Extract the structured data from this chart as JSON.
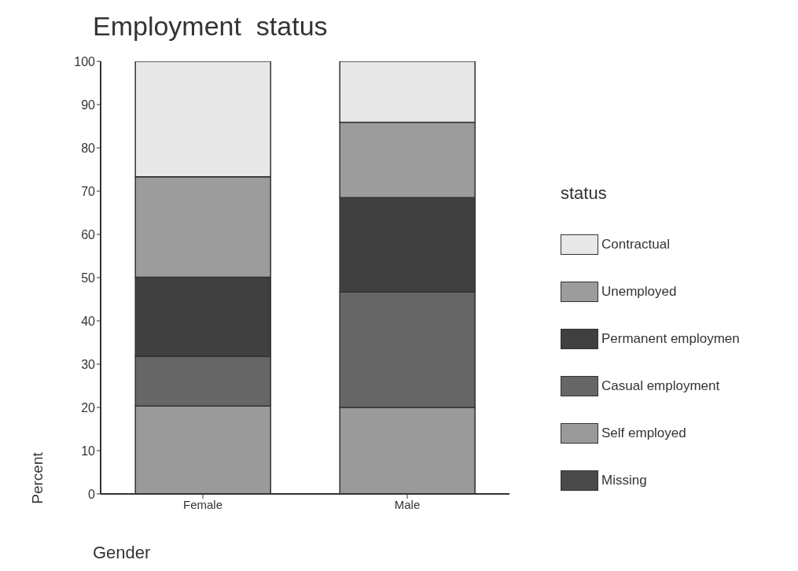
{
  "chart_data": {
    "type": "bar",
    "title": "Employment  status",
    "xlabel": "Gender",
    "ylabel": "Percent",
    "legend_title": "status",
    "categories": [
      "Female",
      "Male"
    ],
    "stacked": true,
    "legend": "right",
    "series": [
      {
        "name": "Missing",
        "color": "#4a4a4a",
        "values": [
          0,
          0
        ]
      },
      {
        "name": "Self employed",
        "color": "#9a9a9a",
        "values": [
          20.3,
          20.0
        ]
      },
      {
        "name": "Casual employment",
        "color": "#666666",
        "values": [
          11.5,
          26.7
        ]
      },
      {
        "name": "Permanent employmen",
        "color": "#404040",
        "values": [
          18.3,
          21.8
        ]
      },
      {
        "name": "Unemployed",
        "color": "#9c9c9c",
        "values": [
          23.2,
          17.4
        ]
      },
      {
        "name": "Contractual",
        "color": "#e8e8e8",
        "values": [
          26.7,
          14.1
        ]
      }
    ],
    "ylim": [
      0,
      100
    ],
    "yticks": [
      0,
      10,
      20,
      30,
      40,
      50,
      60,
      70,
      80,
      90,
      100
    ],
    "grid": false
  }
}
